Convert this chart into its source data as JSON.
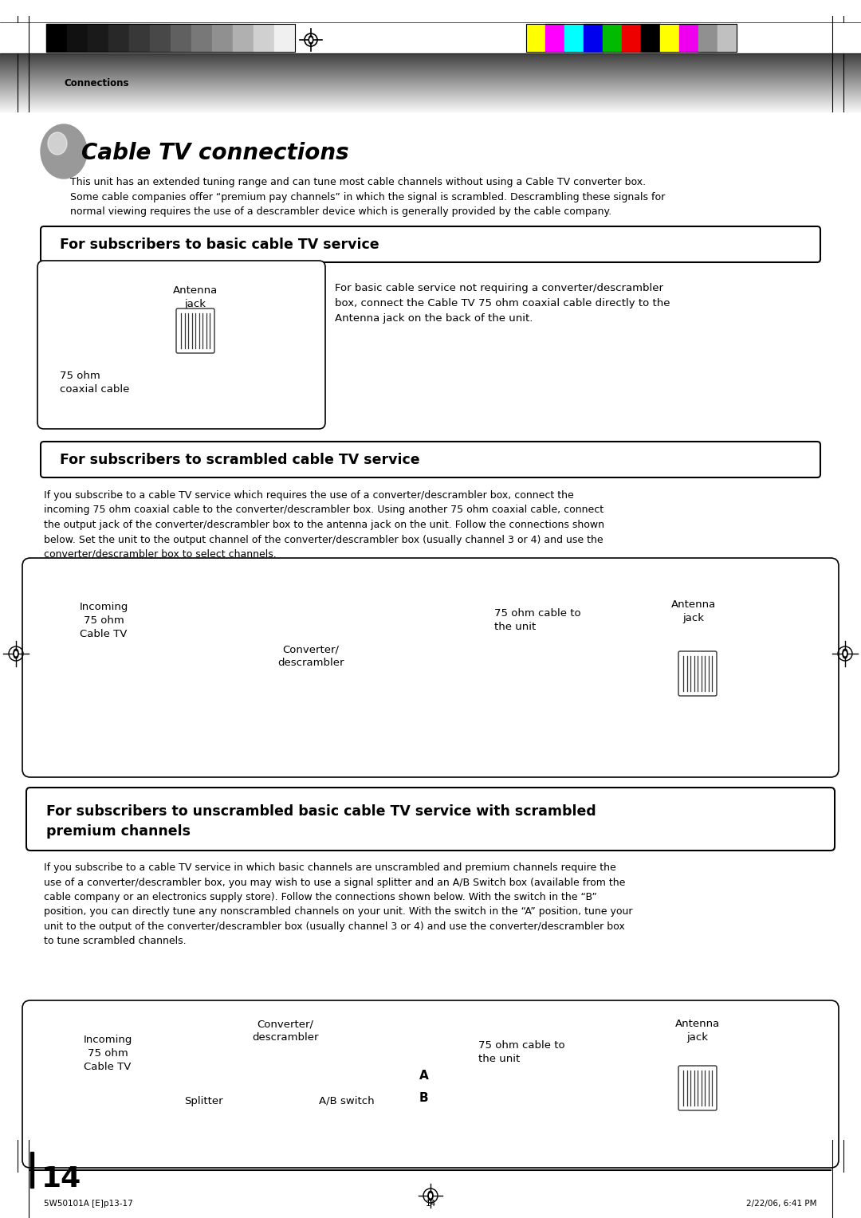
{
  "page_width": 10.8,
  "page_height": 15.28,
  "bg_color": "#ffffff",
  "connections_label": "Connections",
  "title": "Cable TV connections",
  "intro_text": "This unit has an extended tuning range and can tune most cable channels without using a Cable TV converter box.\nSome cable companies offer “premium pay channels” in which the signal is scrambled. Descrambling these signals for\nnormal viewing requires the use of a descrambler device which is generally provided by the cable company.",
  "section1_title": "For subscribers to basic cable TV service",
  "section1_desc": "For basic cable service not requiring a converter/descrambler\nbox, connect the Cable TV 75 ohm coaxial cable directly to the\nAntenna jack on the back of the unit.",
  "section1_label1": "Antenna\njack",
  "section1_label2": "75 ohm\ncoaxial cable",
  "section2_title": "For subscribers to scrambled cable TV service",
  "section2_body": "If you subscribe to a cable TV service which requires the use of a converter/descrambler box, connect the\nincoming 75 ohm coaxial cable to the converter/descrambler box. Using another 75 ohm coaxial cable, connect\nthe output jack of the converter/descrambler box to the antenna jack on the unit. Follow the connections shown\nbelow. Set the unit to the output channel of the converter/descrambler box (usually channel 3 or 4) and use the\nconverter/descrambler box to select channels.",
  "section2_incoming": "Incoming\n75 ohm\nCable TV",
  "section2_converter": "Converter/\ndescrambler",
  "section2_cable": "75 ohm cable to\nthe unit",
  "section2_antenna": "Antenna\njack",
  "section3_title": "For subscribers to unscrambled basic cable TV service with scrambled\npremium channels",
  "section3_body": "If you subscribe to a cable TV service in which basic channels are unscrambled and premium channels require the\nuse of a converter/descrambler box, you may wish to use a signal splitter and an A/B Switch box (available from the\ncable company or an electronics supply store). Follow the connections shown below. With the switch in the “B”\nposition, you can directly tune any nonscrambled channels on your unit. With the switch in the “A” position, tune your\nunit to the output of the converter/descrambler box (usually channel 3 or 4) and use the converter/descrambler box\nto tune scrambled channels.",
  "section3_incoming": "Incoming\n75 ohm\nCable TV",
  "section3_converter": "Converter/\ndescrambler",
  "section3_splitter": "Splitter",
  "section3_abswitch": "A/B switch",
  "section3_cable": "75 ohm cable to\nthe unit",
  "section3_antenna": "Antenna\njack",
  "page_num": "14",
  "footer_left": "5W50101A [E]p13-17",
  "footer_center": "14",
  "footer_right": "2/22/06, 6:41 PM",
  "grayscale_colors": [
    "#000000",
    "#111111",
    "#1a1a1a",
    "#282828",
    "#383838",
    "#484848",
    "#606060",
    "#787878",
    "#909090",
    "#b0b0b0",
    "#d0d0d0",
    "#f0f0f0"
  ],
  "color_bars": [
    "#ffff00",
    "#ff00ff",
    "#00ffff",
    "#0000ee",
    "#00bb00",
    "#ee0000",
    "#000000",
    "#ffff00",
    "#ee00ee",
    "#909090",
    "#c0c0c0"
  ]
}
